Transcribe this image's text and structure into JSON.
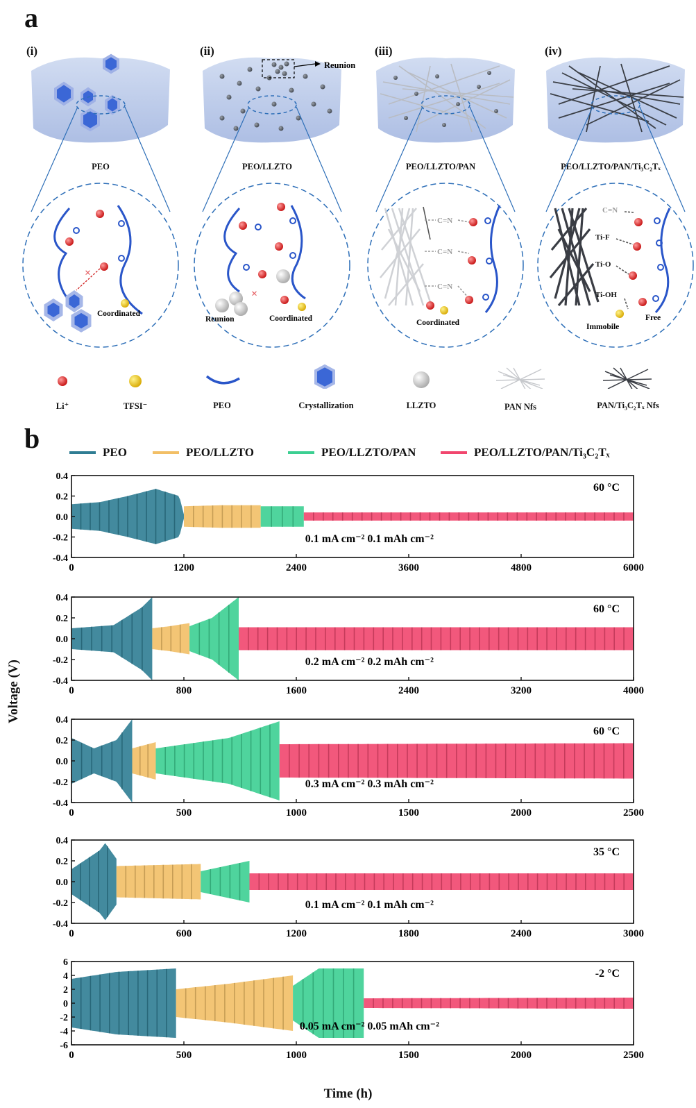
{
  "panel_a": {
    "letter": "a",
    "schemes": [
      {
        "label": "(i)",
        "composite": "PEO",
        "coordinated": "Coordinated"
      },
      {
        "label": "(ii)",
        "composite": "PEO/LLZTO",
        "callout": "Reunion",
        "reunion": "Reunion",
        "coordinated": "Coordinated"
      },
      {
        "label": "(iii)",
        "composite": "PEO/LLZTO/PAN",
        "coordinated": "Coordinated",
        "groups": [
          "C=N",
          "C=N",
          "C=N"
        ]
      },
      {
        "label": "(iv)",
        "composite": "PEO/LLZTO/PAN/Ti₃C₂Tₓ",
        "immobile": "Immobile",
        "free": "Free",
        "groups": [
          "C=N",
          "Ti-F",
          "Ti-O",
          "Ti-OH"
        ]
      }
    ],
    "legend": [
      "Li⁺",
      "TFSI⁻",
      "PEO",
      "Crystallization",
      "LLZTO",
      "PAN  Nfs",
      "PAN/Ti₃C₂Tₓ  Nfs"
    ]
  },
  "panel_b": {
    "letter": "b",
    "ylabel": "Voltage (V)",
    "xlabel": "Time (h)",
    "colors": {
      "PEO": "#2f7d93",
      "PEO/LLZTO": "#f2bf66",
      "PEO/LLZTO/PAN": "#3ccf92",
      "PEO/LLZTO/PAN/Ti3C2Tx": "#f1466e"
    },
    "legend": [
      "PEO",
      "PEO/LLZTO",
      "PEO/LLZTO/PAN",
      "PEO/LLZTO/PAN/Ti₃C₂Tₓ"
    ]
  },
  "chart_data": [
    {
      "type": "area",
      "temperature": "60 °C",
      "condition": "0.1 mA cm⁻²  0.1 mAh cm⁻²",
      "xlim": [
        0,
        6000
      ],
      "ylim": [
        -0.4,
        0.4
      ],
      "xticks": [
        "0",
        "1200",
        "2400",
        "3600",
        "4800",
        "6000"
      ],
      "yticks": [
        "0.4",
        "0.2",
        "0.0",
        "-0.2",
        "-0.4"
      ],
      "series": [
        {
          "name": "PEO",
          "end": 1200,
          "amp": [
            [
              0,
              0.12
            ],
            [
              300,
              0.14
            ],
            [
              600,
              0.2
            ],
            [
              900,
              0.27
            ],
            [
              1150,
              0.2
            ],
            [
              1200,
              0.02
            ]
          ]
        },
        {
          "name": "PEO/LLZTO",
          "end": 2020,
          "amp": [
            [
              1200,
              0.1
            ],
            [
              1600,
              0.11
            ],
            [
              2020,
              0.11
            ]
          ]
        },
        {
          "name": "PEO/LLZTO/PAN",
          "end": 2480,
          "amp": [
            [
              2020,
              0.1
            ],
            [
              2480,
              0.1
            ]
          ]
        },
        {
          "name": "PEO/LLZTO/PAN/Ti₃C₂Tₓ",
          "end": 6000,
          "amp": [
            [
              2480,
              0.04
            ],
            [
              6000,
              0.04
            ]
          ]
        }
      ]
    },
    {
      "type": "area",
      "temperature": "60 °C",
      "condition": "0.2 mA cm⁻²  0.2 mAh cm⁻²",
      "xlim": [
        0,
        4000
      ],
      "ylim": [
        -0.4,
        0.4
      ],
      "xticks": [
        "0",
        "800",
        "1600",
        "2400",
        "3200",
        "4000"
      ],
      "yticks": [
        "0.4",
        "0.2",
        "0.0",
        "-0.2",
        "-0.4"
      ],
      "series": [
        {
          "name": "PEO",
          "end": 575,
          "amp": [
            [
              0,
              0.1
            ],
            [
              300,
              0.13
            ],
            [
              500,
              0.3
            ],
            [
              575,
              0.4
            ]
          ]
        },
        {
          "name": "PEO/LLZTO",
          "end": 840,
          "amp": [
            [
              575,
              0.1
            ],
            [
              700,
              0.12
            ],
            [
              840,
              0.15
            ]
          ]
        },
        {
          "name": "PEO/LLZTO/PAN",
          "end": 1190,
          "amp": [
            [
              840,
              0.12
            ],
            [
              1000,
              0.2
            ],
            [
              1190,
              0.4
            ]
          ]
        },
        {
          "name": "PEO/LLZTO/PAN/Ti₃C₂Tₓ",
          "end": 4000,
          "amp": [
            [
              1190,
              0.11
            ],
            [
              4000,
              0.11
            ]
          ]
        }
      ]
    },
    {
      "type": "area",
      "temperature": "60 °C",
      "condition": "0.3 mA cm⁻²  0.3 mAh cm⁻²",
      "xlim": [
        0,
        2500
      ],
      "ylim": [
        -0.4,
        0.4
      ],
      "xticks": [
        "0",
        "500",
        "1000",
        "1500",
        "2000",
        "2500"
      ],
      "yticks": [
        "0.4",
        "0.2",
        "0.0",
        "-0.2",
        "-0.4"
      ],
      "series": [
        {
          "name": "PEO",
          "end": 270,
          "amp": [
            [
              0,
              0.22
            ],
            [
              100,
              0.12
            ],
            [
              200,
              0.2
            ],
            [
              270,
              0.4
            ]
          ]
        },
        {
          "name": "PEO/LLZTO",
          "end": 375,
          "amp": [
            [
              270,
              0.12
            ],
            [
              375,
              0.18
            ]
          ]
        },
        {
          "name": "PEO/LLZTO/PAN",
          "end": 925,
          "amp": [
            [
              375,
              0.12
            ],
            [
              700,
              0.22
            ],
            [
              925,
              0.38
            ]
          ]
        },
        {
          "name": "PEO/LLZTO/PAN/Ti₃C₂Tₓ",
          "end": 2500,
          "amp": [
            [
              925,
              0.16
            ],
            [
              2500,
              0.17
            ]
          ]
        }
      ]
    },
    {
      "type": "area",
      "temperature": "35 °C",
      "condition": "0.1 mA cm⁻²  0.1 mAh cm⁻²",
      "xlim": [
        0,
        3000
      ],
      "ylim": [
        -0.4,
        0.4
      ],
      "xticks": [
        "0",
        "600",
        "1200",
        "1800",
        "2400",
        "3000"
      ],
      "yticks": [
        "0.4",
        "0.2",
        "0.0",
        "-0.2",
        "-0.4"
      ],
      "series": [
        {
          "name": "PEO",
          "end": 240,
          "amp": [
            [
              0,
              0.12
            ],
            [
              150,
              0.3
            ],
            [
              180,
              0.37
            ],
            [
              240,
              0.22
            ]
          ]
        },
        {
          "name": "PEO/LLZTO",
          "end": 690,
          "amp": [
            [
              240,
              0.15
            ],
            [
              690,
              0.17
            ]
          ]
        },
        {
          "name": "PEO/LLZTO/PAN",
          "end": 950,
          "amp": [
            [
              690,
              0.1
            ],
            [
              950,
              0.2
            ]
          ]
        },
        {
          "name": "PEO/LLZTO/PAN/Ti₃C₂Tₓ",
          "end": 3000,
          "amp": [
            [
              950,
              0.08
            ],
            [
              3000,
              0.08
            ]
          ]
        }
      ]
    },
    {
      "type": "area",
      "temperature": "-2 °C",
      "condition": "0.05 mA cm⁻²  0.05 mAh cm⁻²",
      "xlim": [
        0,
        2500
      ],
      "ylim": [
        -6,
        6
      ],
      "xticks": [
        "0",
        "500",
        "1000",
        "1500",
        "2000",
        "2500"
      ],
      "yticks": [
        "6",
        "4",
        "2",
        "0",
        "-2",
        "-4",
        "-6"
      ],
      "series": [
        {
          "name": "PEO",
          "end": 465,
          "amp": [
            [
              0,
              3.5
            ],
            [
              200,
              4.5
            ],
            [
              465,
              5
            ]
          ]
        },
        {
          "name": "PEO/LLZTO",
          "end": 985,
          "amp": [
            [
              465,
              2
            ],
            [
              700,
              2.8
            ],
            [
              985,
              4
            ]
          ]
        },
        {
          "name": "PEO/LLZTO/PAN",
          "end": 1300,
          "amp": [
            [
              985,
              2.5
            ],
            [
              1100,
              5
            ],
            [
              1300,
              5
            ]
          ]
        },
        {
          "name": "PEO/LLZTO/PAN/Ti₃C₂Tₓ",
          "end": 2500,
          "amp": [
            [
              1300,
              0.7
            ],
            [
              2500,
              0.8
            ]
          ]
        }
      ]
    }
  ]
}
